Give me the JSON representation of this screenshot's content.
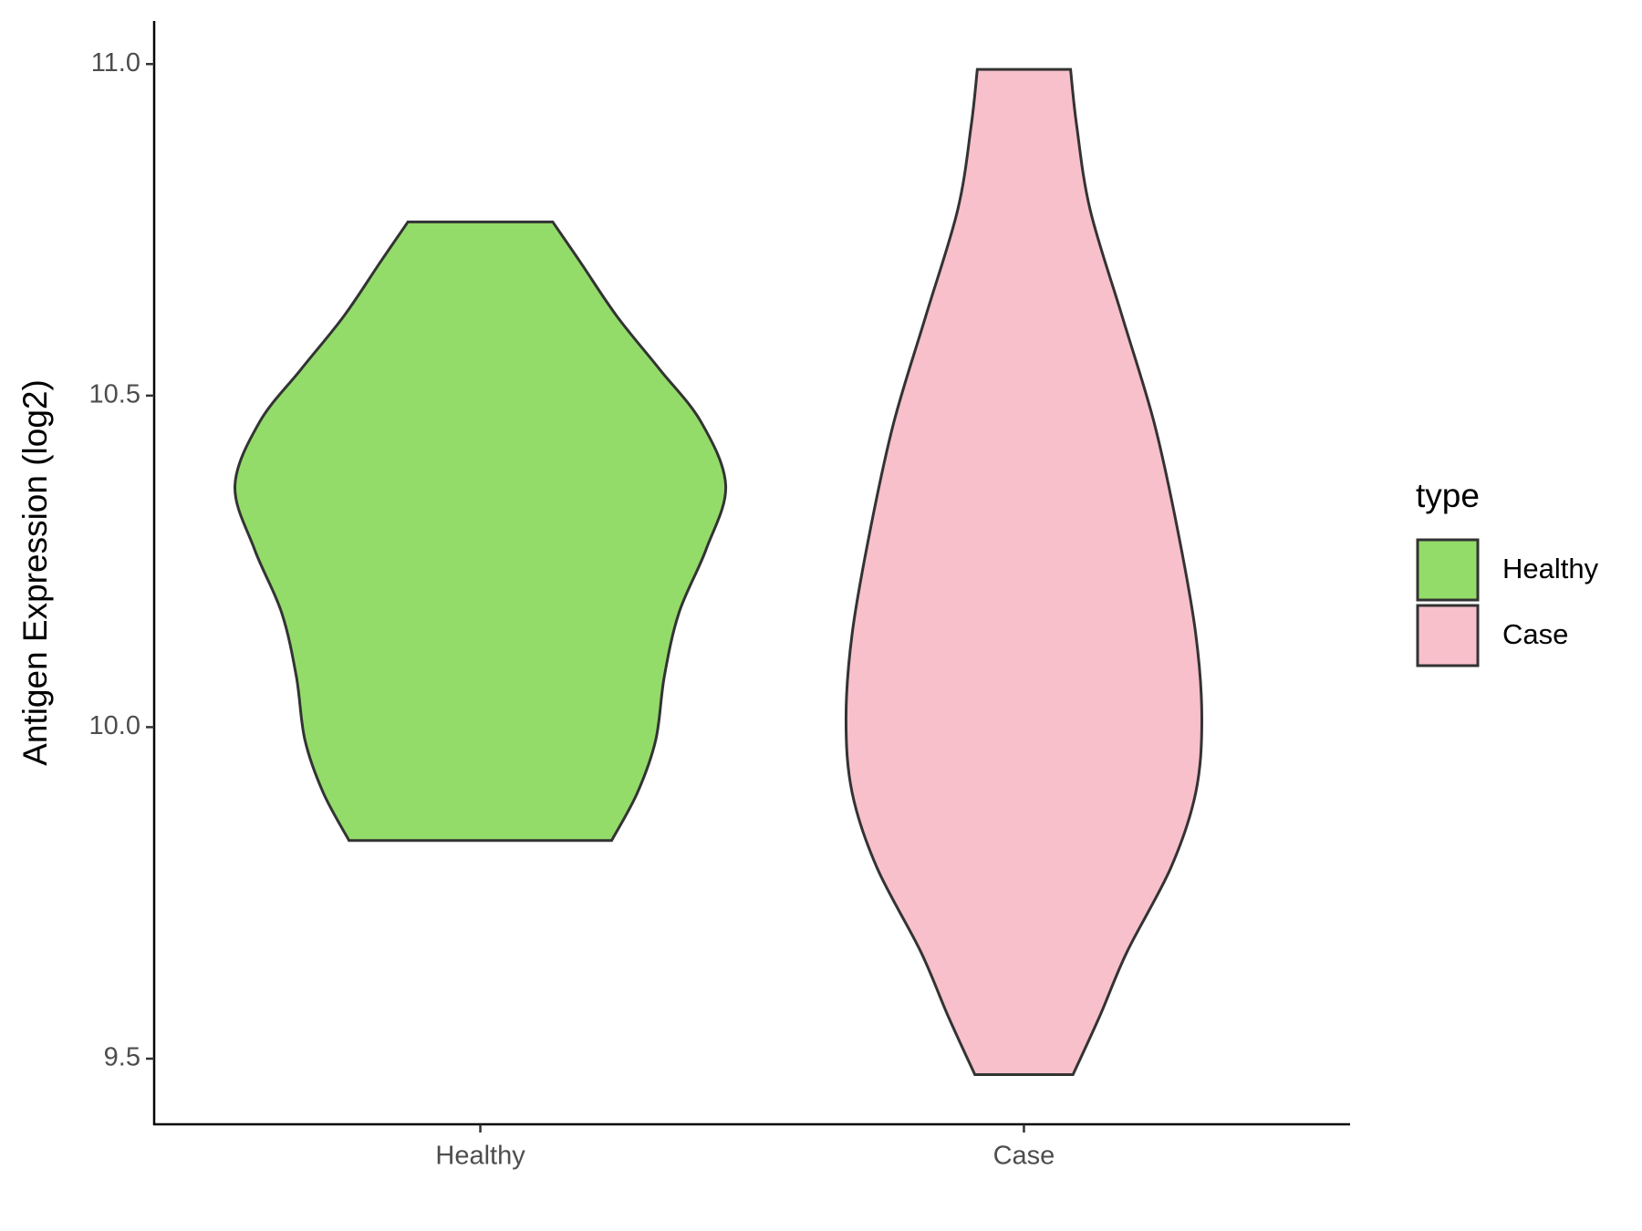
{
  "chart_data": {
    "type": "violin",
    "ylabel": "Antigen Expression (log2)",
    "categories": [
      "Healthy",
      "Case"
    ],
    "ylim": [
      9.401,
      11.065
    ],
    "yticks": [
      {
        "value": 9.5,
        "label": "9.5"
      },
      {
        "value": 10,
        "label": "10.0"
      },
      {
        "value": 10.5,
        "label": "10.5"
      },
      {
        "value": 11,
        "label": "11.0"
      }
    ],
    "legend_title": "type",
    "legend_position": "right",
    "series": [
      {
        "name": "Healthy",
        "color": "#93dc6a",
        "y": [
          10.762,
          10.7,
          10.62,
          10.54,
          10.46,
          10.364,
          10.268,
          10.173,
          10.077,
          9.981,
          9.901,
          9.829
        ],
        "density": [
          0.295,
          0.41,
          0.556,
          0.73,
          0.9,
          1.0,
          0.92,
          0.81,
          0.75,
          0.715,
          0.64,
          0.535
        ]
      },
      {
        "name": "Case",
        "color": "#f8c0cb",
        "y": [
          10.992,
          10.907,
          10.78,
          10.62,
          10.46,
          10.3,
          10.141,
          10.013,
          9.901,
          9.789,
          9.661,
          9.565,
          9.476
        ],
        "density": [
          0.19,
          0.215,
          0.27,
          0.4,
          0.53,
          0.625,
          0.7,
          0.725,
          0.7,
          0.6,
          0.42,
          0.31,
          0.2
        ]
      }
    ]
  }
}
